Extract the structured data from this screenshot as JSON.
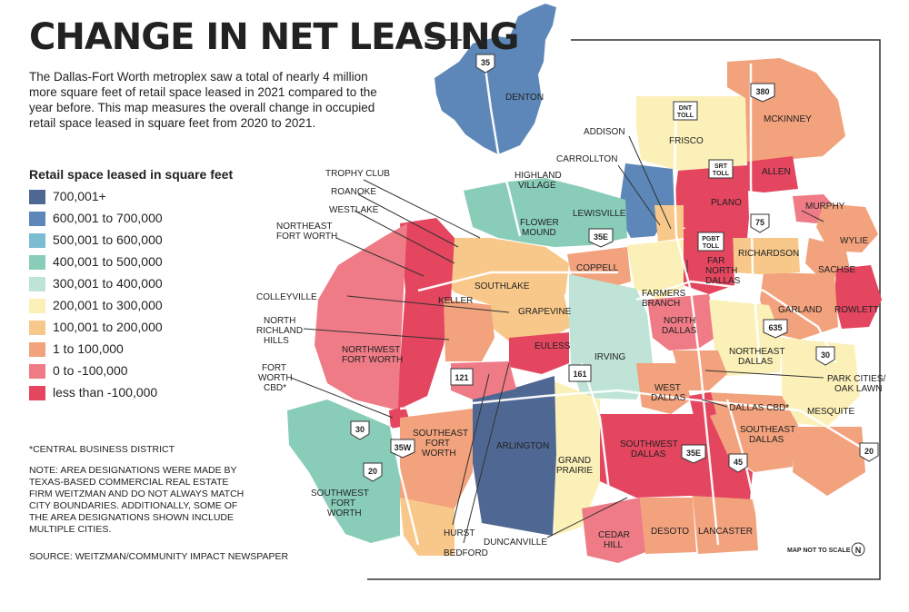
{
  "title": "CHANGE IN NET LEASING",
  "intro": "The Dallas-Fort Worth metroplex saw a total of nearly 4 million more square feet of retail space leased in 2021 compared to the year before. This map measures the overall change in occupied retail space leased in square feet from 2020 to 2021.",
  "legend": {
    "title": "Retail space leased in square feet",
    "items": [
      {
        "label": "700,001+",
        "color": "#4f6893"
      },
      {
        "label": "600,001 to 700,000",
        "color": "#5d87b8"
      },
      {
        "label": "500,001 to 600,000",
        "color": "#7bbcd0"
      },
      {
        "label": "400,001 to 500,000",
        "color": "#89cdb9"
      },
      {
        "label": "300,001 to 400,000",
        "color": "#bfe3d6"
      },
      {
        "label": "200,001 to 300,000",
        "color": "#fbf1b8"
      },
      {
        "label": "100,001 to 200,000",
        "color": "#f8c88a"
      },
      {
        "label": "1 to 100,000",
        "color": "#f2a27c"
      },
      {
        "label": "0 to -100,000",
        "color": "#ef7b86"
      },
      {
        "label": "less than -100,000",
        "color": "#e4455f"
      }
    ]
  },
  "footnote": "*CENTRAL BUSINESS DISTRICT",
  "note": "NOTE: AREA DESIGNATIONS WERE MADE BY TEXAS-BASED COMMERCIAL REAL ESTATE FIRM WEITZMAN AND DO NOT ALWAYS MATCH CITY BOUNDARIES. ADDITIONALLY, SOME OF THE AREA DESIGNATIONS SHOWN INCLUDE MULTIPLE CITIES.",
  "source": "SOURCE: WEITZMAN/COMMUNITY IMPACT NEWSPAPER",
  "scale_note": "MAP NOT TO SCALE",
  "north": "N",
  "areas": {
    "denton": "DENTON",
    "frisco": "FRISCO",
    "mckinney": "MCKINNEY",
    "allen": "ALLEN",
    "plano": "PLANO",
    "murphy": "MURPHY",
    "wylie": "WYLIE",
    "sachse": "SACHSE",
    "rowlett": "ROWLETT",
    "garland": "GARLAND",
    "richardson": "RICHARDSON",
    "addison": "ADDISON",
    "carrollton": "CARROLLTON",
    "highland_village": "HIGHLAND VILLAGE",
    "lewisville": "LEWISVILLE",
    "flower_mound": "FLOWER MOUND",
    "trophy_club": "TROPHY CLUB",
    "roanoke": "ROANOKE",
    "westlake": "WESTLAKE",
    "northeast_fort_worth": "NORTHEAST FORT WORTH",
    "southlake": "SOUTHLAKE",
    "keller": "KELLER",
    "coppell": "COPPELL",
    "far_north_dallas": "FAR NORTH DALLAS",
    "farmers_branch": "FARMERS BRANCH",
    "colleyville": "COLLEYVILLE",
    "grapevine": "GRAPEVINE",
    "north_richland_hills": "NORTH RICHLAND HILLS",
    "northwest_fort_worth": "NORTHWEST FORT WORTH",
    "euless": "EULESS",
    "irving": "IRVING",
    "north_dallas": "NORTH DALLAS",
    "northeast_dallas": "NORTHEAST DALLAS",
    "park_cities": "PARK CITIES/ OAK LAWN",
    "fort_worth_cbd": "FORT WORTH CBD*",
    "west_dallas": "WEST DALLAS",
    "dallas_cbd": "DALLAS CBD*",
    "mesquite": "MESQUITE",
    "southeast_dallas": "SOUTHEAST DALLAS",
    "southeast_fort_worth": "SOUTHEAST FORT WORTH",
    "arlington": "ARLINGTON",
    "grand_prairie": "GRAND PRAIRIE",
    "southwest_dallas": "SOUTHWEST DALLAS",
    "southwest_fort_worth": "SOUTHWEST FORT WORTH",
    "hurst": "HURST",
    "bedford": "BEDFORD",
    "duncanville": "DUNCANVILLE",
    "cedar_hill": "CEDAR HILL",
    "desoto": "DESOTO",
    "lancaster": "LANCASTER"
  },
  "highways": [
    "35",
    "380",
    "DNT TOLL",
    "SRT TOLL",
    "75",
    "PGBT TOLL",
    "35E",
    "635",
    "30",
    "121",
    "161",
    "35W",
    "20",
    "45",
    "30",
    "20"
  ]
}
